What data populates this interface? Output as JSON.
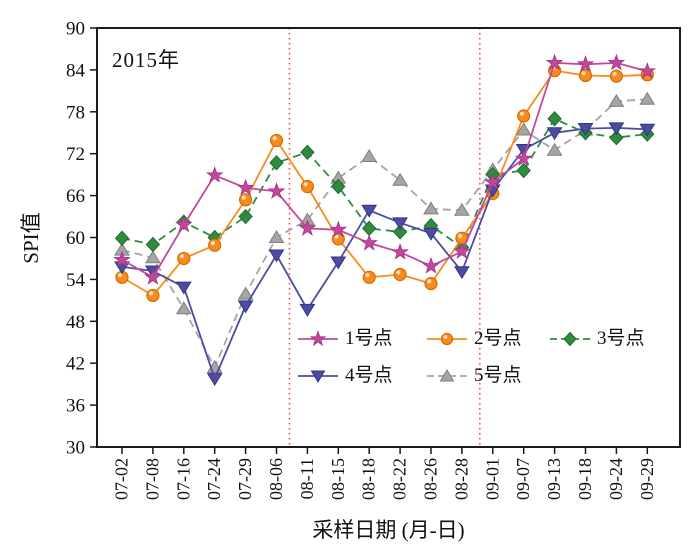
{
  "chart_data": {
    "type": "line",
    "title": "2015年",
    "xlabel": "采样日期 (月-日)",
    "ylabel": "SPI值",
    "ylim": [
      30,
      90
    ],
    "yticks": [
      30,
      36,
      42,
      48,
      54,
      60,
      66,
      72,
      78,
      84,
      90
    ],
    "grid": false,
    "legend_position": "inside-bottom",
    "legend_rows": [
      [
        0,
        1,
        2
      ],
      [
        3,
        4
      ]
    ],
    "categories": [
      "07-02",
      "07-08",
      "07-16",
      "07-24",
      "07-29",
      "08-06",
      "08-11",
      "08-15",
      "08-18",
      "08-22",
      "08-26",
      "08-28",
      "09-01",
      "09-07",
      "09-13",
      "09-18",
      "09-24",
      "09-29"
    ],
    "series": [
      {
        "name": "1号点",
        "marker": "star",
        "line": "solid",
        "color": "#C2489E",
        "edge": "#A23283",
        "values": [
          56.8,
          54.3,
          61.8,
          68.9,
          67.1,
          66.6,
          61.3,
          61.1,
          59.2,
          57.9,
          55.9,
          58.0,
          67.9,
          71.3,
          85.0,
          84.8,
          85.0,
          83.8
        ]
      },
      {
        "name": "2号点",
        "marker": "circle",
        "line": "solid",
        "color": "#F68C1E",
        "edge": "#D96A00",
        "values": [
          54.3,
          51.7,
          57.0,
          58.9,
          65.4,
          73.9,
          67.3,
          59.8,
          54.3,
          54.7,
          53.4,
          59.9,
          66.3,
          77.4,
          83.9,
          83.2,
          83.1,
          83.3
        ]
      },
      {
        "name": "3号点",
        "marker": "diamond",
        "line": "dashed",
        "color": "#2F8B3F",
        "edge": "#1F6B2C",
        "values": [
          59.9,
          59.0,
          62.2,
          60.0,
          63.0,
          70.7,
          72.2,
          67.3,
          61.3,
          60.8,
          61.7,
          58.6,
          69.0,
          69.6,
          77.0,
          75.0,
          74.3,
          74.8
        ]
      },
      {
        "name": "4号点",
        "marker": "triangle-down",
        "line": "solid",
        "color": "#4C4CA4",
        "edge": "#35357F",
        "values": [
          55.8,
          55.2,
          52.9,
          39.8,
          50.2,
          57.5,
          49.7,
          56.5,
          63.9,
          62.1,
          60.6,
          55.1,
          66.8,
          72.6,
          75.0,
          75.6,
          75.7,
          75.5
        ]
      },
      {
        "name": "5号点",
        "marker": "triangle-up",
        "line": "dashed",
        "color": "#A5A5A5",
        "edge": "#7E7E7E",
        "values": [
          58.2,
          57.1,
          49.8,
          41.4,
          51.9,
          60.0,
          62.5,
          68.5,
          71.6,
          68.2,
          64.1,
          63.9,
          69.7,
          75.4,
          72.5,
          75.4,
          79.5,
          79.8
        ]
      }
    ],
    "annotations": {
      "vlines": [
        {
          "x_index": 5.42,
          "between": [
            "08-06",
            "08-11"
          ],
          "style": "dotted",
          "color": "#FF4640"
        },
        {
          "x_index": 11.58,
          "between": [
            "08-28",
            "09-01"
          ],
          "style": "dotted",
          "color": "#FF4640"
        }
      ]
    }
  }
}
